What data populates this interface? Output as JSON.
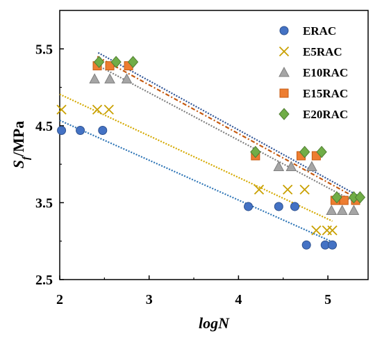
{
  "chart_data": {
    "type": "scatter",
    "title": "",
    "xlabel": "logN",
    "ylabel": "Sf/MPa",
    "xlim": [
      2,
      5.45
    ],
    "ylim": [
      2.5,
      6.0
    ],
    "x_ticks": [
      2,
      3,
      4,
      5
    ],
    "x_tick_labels": [
      "2",
      "3",
      "4",
      "5"
    ],
    "y_ticks": [
      2.5,
      3.5,
      4.5,
      5.5
    ],
    "y_tick_labels": [
      "2.5",
      "3.5",
      "4.5",
      "5.5"
    ],
    "grid": false,
    "legend_position": "top-right",
    "series": [
      {
        "name": "ERAC",
        "marker": "circle",
        "color": "#4472C4",
        "points": [
          [
            2.02,
            4.44
          ],
          [
            2.23,
            4.44
          ],
          [
            2.48,
            4.44
          ],
          [
            4.11,
            3.45
          ],
          [
            4.45,
            3.45
          ],
          [
            4.63,
            3.45
          ],
          [
            4.76,
            2.95
          ],
          [
            4.97,
            2.95
          ],
          [
            5.05,
            2.95
          ]
        ],
        "trendline": {
          "color": "#2E75B6",
          "x": [
            2.0,
            5.05
          ],
          "y": [
            4.57,
            2.99
          ]
        }
      },
      {
        "name": "E5RAC",
        "marker": "x",
        "color": "#C9A000",
        "points": [
          [
            2.02,
            4.71
          ],
          [
            2.42,
            4.71
          ],
          [
            2.55,
            4.71
          ],
          [
            4.23,
            3.67
          ],
          [
            4.55,
            3.67
          ],
          [
            4.74,
            3.67
          ],
          [
            4.87,
            3.14
          ],
          [
            4.99,
            3.14
          ],
          [
            5.05,
            3.14
          ]
        ],
        "trendline": {
          "color": "#D4A900",
          "x": [
            2.0,
            5.05
          ],
          "y": [
            4.91,
            3.26
          ]
        }
      },
      {
        "name": "E10RAC",
        "marker": "triangle",
        "color": "#A5A5A5",
        "points": [
          [
            2.39,
            5.11
          ],
          [
            2.56,
            5.11
          ],
          [
            2.75,
            5.11
          ],
          [
            4.45,
            3.97
          ],
          [
            4.59,
            3.97
          ],
          [
            4.82,
            3.97
          ],
          [
            5.04,
            3.4
          ],
          [
            5.16,
            3.4
          ],
          [
            5.29,
            3.4
          ]
        ],
        "trendline": {
          "color": "#7F7F7F",
          "x": [
            2.4,
            5.3
          ],
          "y": [
            5.3,
            3.51
          ]
        }
      },
      {
        "name": "E15RAC",
        "marker": "square",
        "color": "#ED7D31",
        "points": [
          [
            2.42,
            5.28
          ],
          [
            2.56,
            5.28
          ],
          [
            2.77,
            5.28
          ],
          [
            4.19,
            4.11
          ],
          [
            4.7,
            4.11
          ],
          [
            4.87,
            4.11
          ],
          [
            5.08,
            3.53
          ],
          [
            5.18,
            3.53
          ],
          [
            5.31,
            3.53
          ]
        ],
        "trendline": {
          "color": "#C55A11",
          "x": [
            2.42,
            5.32
          ],
          "y": [
            5.4,
            3.56
          ]
        }
      },
      {
        "name": "E20RAC",
        "marker": "diamond",
        "color": "#70AD47",
        "points": [
          [
            2.44,
            5.33
          ],
          [
            2.63,
            5.33
          ],
          [
            2.82,
            5.33
          ],
          [
            4.19,
            4.16
          ],
          [
            4.74,
            4.16
          ],
          [
            4.93,
            4.16
          ],
          [
            5.1,
            3.57
          ],
          [
            5.29,
            3.57
          ],
          [
            5.36,
            3.57
          ]
        ],
        "trendline": {
          "color": "#2F5597",
          "x": [
            2.43,
            5.37
          ],
          "y": [
            5.45,
            3.57
          ]
        }
      }
    ]
  }
}
